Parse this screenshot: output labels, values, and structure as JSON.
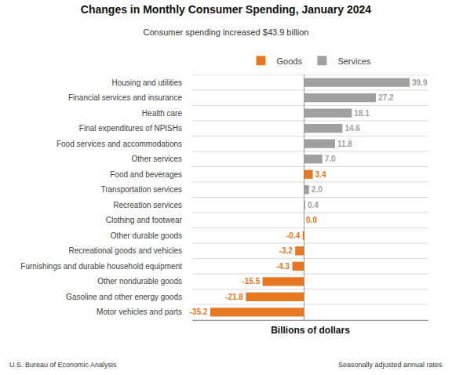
{
  "chart_data": {
    "type": "bar",
    "orientation": "horizontal",
    "title": "Changes in Monthly Consumer Spending, January 2024",
    "subtitle": "Consumer spending increased $43.9 billion",
    "xlabel": "Billions of dollars",
    "annotations": [
      "U.S. Bureau of Economic Analysis",
      "Seasonally adjusted annual rates"
    ],
    "categories": [
      "Housing and utilities",
      "Financial services and insurance",
      "Health care",
      "Final expenditures of NPISHs",
      "Food services and accommodations",
      "Other services",
      "Food and beverages",
      "Transportation services",
      "Recreation services",
      "Clothing and footwear",
      "Other durable goods",
      "Recreational goods and vehicles",
      "Furnishings and durable household equipment",
      "Other nondurable goods",
      "Gasoline and other energy goods",
      "Motor vehicles and parts"
    ],
    "series": [
      {
        "name": "Goods",
        "color": "#E87722",
        "values": [
          null,
          null,
          null,
          null,
          null,
          null,
          3.4,
          null,
          null,
          0.0,
          -0.4,
          -3.2,
          -4.3,
          -15.5,
          -21.8,
          -35.2
        ],
        "value_labels": [
          null,
          null,
          null,
          null,
          null,
          null,
          "3.4",
          null,
          null,
          "0.0",
          "-0.4",
          "-3.2",
          "-4.3",
          "-15.5",
          "-21.8",
          "-35.2"
        ]
      },
      {
        "name": "Services",
        "color": "#A0A0A0",
        "values": [
          39.9,
          27.2,
          18.1,
          14.6,
          11.8,
          7.0,
          null,
          2.0,
          0.4,
          null,
          null,
          null,
          null,
          null,
          null,
          null
        ],
        "value_labels": [
          "39.9",
          "27.2",
          "18.1",
          "14.6",
          "11.8",
          "7.0",
          null,
          "2.0",
          "0.4",
          null,
          null,
          null,
          null,
          null,
          null,
          null
        ]
      }
    ],
    "xlim": [
      -42,
      47
    ],
    "data_labels": true,
    "tick_labels": "y",
    "grid": true,
    "legend": "upper center"
  }
}
